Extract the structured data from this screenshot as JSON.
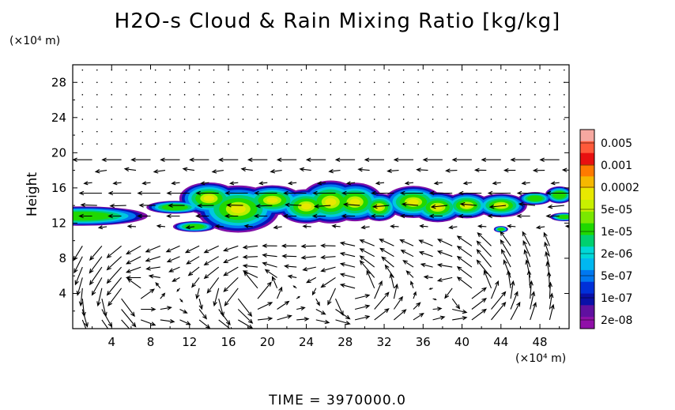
{
  "chart_data": {
    "type": "heatmap",
    "title": "H2O-s Cloud & Rain Mixing Ratio [kg/kg]",
    "ylabel": "Height",
    "y_unit": "(×10⁴ m)",
    "x_unit": "(×10⁴ m)",
    "xlim": [
      0,
      51
    ],
    "ylim": [
      0,
      30
    ],
    "x_ticks": [
      4,
      8,
      12,
      16,
      20,
      24,
      28,
      32,
      36,
      40,
      44,
      48
    ],
    "y_ticks": [
      4,
      8,
      12,
      16,
      20,
      24,
      28
    ],
    "colorbar": {
      "labels": [
        "0.005",
        "0.001",
        "0.0002",
        "5e-05",
        "1e-05",
        "2e-06",
        "5e-07",
        "1e-07",
        "2e-08"
      ],
      "colors": [
        "#f6a8a0",
        "#ff5a3a",
        "#e81010",
        "#ff7a00",
        "#f6b800",
        "#e8e800",
        "#c8f000",
        "#7ae800",
        "#20d800",
        "#00d070",
        "#00d8d8",
        "#00b8f0",
        "#0078f0",
        "#0030d8",
        "#0a10a8",
        "#6010a0",
        "#9010a8"
      ]
    },
    "overlay": "wind-vector arrows",
    "footer": "TIME  =  3970000.0"
  }
}
